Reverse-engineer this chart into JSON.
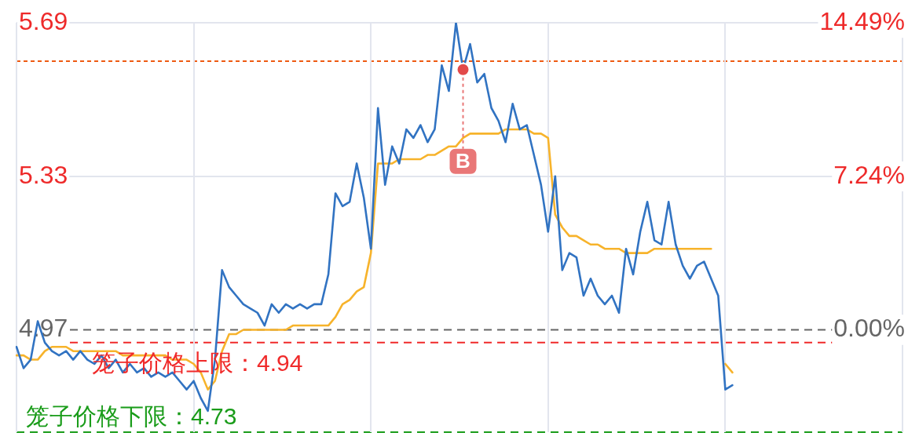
{
  "chart_data": {
    "type": "line",
    "categories": [
      null,
      null,
      null,
      null,
      null,
      null,
      null,
      null,
      null,
      null,
      null,
      null,
      null,
      null,
      null,
      null,
      null,
      null,
      null,
      null,
      null,
      null,
      null,
      null,
      null,
      null,
      null,
      null,
      null,
      null,
      null,
      null,
      null,
      null,
      null,
      null,
      null,
      null,
      null,
      null,
      null,
      null,
      null,
      null,
      null,
      null,
      null,
      null,
      null,
      null,
      null,
      null,
      null,
      null,
      null,
      null,
      null,
      null,
      null,
      null,
      null,
      null,
      null,
      null,
      null,
      null,
      null,
      null,
      null,
      null,
      null,
      null,
      null,
      null,
      null,
      null,
      null,
      null,
      null,
      null,
      null,
      null,
      null,
      null,
      null,
      null,
      null,
      null,
      null,
      null,
      null,
      null,
      null,
      null,
      null,
      null,
      null,
      null,
      null,
      null,
      null,
      null,
      null,
      null,
      null,
      null,
      null,
      null,
      null,
      null,
      null,
      null,
      null,
      null,
      null,
      null,
      null,
      null,
      null,
      null,
      null,
      null,
      null,
      null,
      null,
      null
    ],
    "series": [
      {
        "color": "#3173c2",
        "values": [
          4.93,
          4.88,
          4.9,
          4.99,
          4.94,
          4.92,
          4.91,
          4.92,
          4.9,
          4.92,
          4.9,
          4.89,
          4.91,
          4.88,
          4.9,
          4.87,
          4.89,
          4.87,
          4.88,
          4.86,
          4.87,
          4.86,
          4.87,
          4.85,
          4.83,
          4.85,
          4.81,
          4.78,
          4.9,
          5.11,
          5.07,
          5.05,
          5.03,
          5.02,
          5.01,
          4.98,
          5.03,
          5.01,
          5.03,
          5.02,
          5.03,
          5.02,
          5.03,
          5.03,
          5.1,
          5.29,
          5.26,
          5.27,
          5.36,
          5.28,
          5.16,
          5.49,
          5.31,
          5.4,
          5.36,
          5.44,
          5.42,
          5.45,
          5.41,
          5.44,
          5.59,
          5.53,
          5.69,
          5.58,
          5.64,
          5.55,
          5.57,
          5.49,
          5.46,
          5.41,
          5.5,
          5.44,
          5.45,
          5.38,
          5.31,
          5.2,
          5.33,
          5.11,
          5.15,
          5.14,
          5.05,
          5.09,
          5.05,
          5.03,
          5.05,
          5.01,
          5.16,
          5.1,
          5.2,
          5.27,
          5.18,
          5.17,
          5.27,
          5.17,
          5.12,
          5.09,
          5.12,
          5.13,
          5.09,
          5.05,
          4.83,
          4.84,
          null,
          null,
          null,
          null,
          null,
          null,
          null,
          null,
          null,
          null,
          null,
          null,
          null,
          null,
          null,
          null,
          null,
          null,
          null,
          null,
          null,
          null,
          null,
          null
        ]
      },
      {
        "color": "#f7b32b",
        "values": [
          4.91,
          4.91,
          4.9,
          4.9,
          4.92,
          4.93,
          4.93,
          4.93,
          4.92,
          4.92,
          4.92,
          4.92,
          4.92,
          4.92,
          4.92,
          4.91,
          4.91,
          4.91,
          4.91,
          4.91,
          4.91,
          4.91,
          4.9,
          4.9,
          4.9,
          4.89,
          4.87,
          4.83,
          4.85,
          4.92,
          4.96,
          4.96,
          4.97,
          4.97,
          4.97,
          4.97,
          4.97,
          4.97,
          4.97,
          4.98,
          4.98,
          4.98,
          4.98,
          4.98,
          4.98,
          5.0,
          5.03,
          5.04,
          5.06,
          5.07,
          5.15,
          5.36,
          5.36,
          5.36,
          5.37,
          5.37,
          5.37,
          5.37,
          5.38,
          5.38,
          5.39,
          5.4,
          5.4,
          5.42,
          5.43,
          5.43,
          5.43,
          5.43,
          5.43,
          5.44,
          5.44,
          5.44,
          5.44,
          5.43,
          5.43,
          5.42,
          5.24,
          5.21,
          5.19,
          5.19,
          5.18,
          5.17,
          5.17,
          5.16,
          5.16,
          5.16,
          5.15,
          5.15,
          5.15,
          5.15,
          5.16,
          5.16,
          5.16,
          5.16,
          5.16,
          5.16,
          5.16,
          5.16,
          5.16,
          null,
          4.89,
          4.87,
          null,
          null,
          null,
          null,
          null,
          null,
          null,
          null,
          null,
          null,
          null,
          null,
          null,
          null,
          null,
          null,
          null,
          null,
          null,
          null,
          null,
          null,
          null,
          null
        ]
      },
      {
        "type": "scatter",
        "color": "#e24a4a",
        "marker": "circle",
        "values": [
          null,
          null,
          null,
          null,
          null,
          null,
          null,
          null,
          null,
          null,
          null,
          null,
          null,
          null,
          null,
          null,
          null,
          null,
          null,
          null,
          null,
          null,
          null,
          null,
          null,
          null,
          null,
          null,
          null,
          null,
          null,
          null,
          null,
          null,
          null,
          null,
          null,
          null,
          null,
          null,
          null,
          null,
          null,
          null,
          null,
          null,
          null,
          null,
          null,
          null,
          null,
          null,
          null,
          null,
          null,
          null,
          null,
          null,
          null,
          null,
          null,
          null,
          null,
          5.58,
          null,
          null,
          null,
          null,
          null,
          null,
          null,
          null,
          null,
          null,
          null,
          null,
          null,
          null,
          null,
          null,
          null,
          null,
          null,
          null,
          null,
          null,
          null,
          null,
          null,
          null,
          null,
          null,
          null,
          null,
          null,
          null,
          null,
          null,
          null,
          null,
          null,
          null,
          null,
          null,
          null,
          null,
          null,
          null,
          null,
          null,
          null,
          null,
          null,
          null,
          null,
          null,
          null,
          null,
          null,
          null,
          null,
          null,
          null,
          null,
          null,
          null
        ],
        "value_labels": [
          null,
          null,
          null,
          null,
          null,
          null,
          null,
          null,
          null,
          null,
          null,
          null,
          null,
          null,
          null,
          null,
          null,
          null,
          null,
          null,
          null,
          null,
          null,
          null,
          null,
          null,
          null,
          null,
          null,
          null,
          null,
          null,
          null,
          null,
          null,
          null,
          null,
          null,
          null,
          null,
          null,
          null,
          null,
          null,
          null,
          null,
          null,
          null,
          null,
          null,
          null,
          null,
          null,
          null,
          null,
          null,
          null,
          null,
          null,
          null,
          null,
          null,
          null,
          "B",
          null,
          null,
          null,
          null,
          null,
          null,
          null,
          null,
          null,
          null,
          null,
          null,
          null,
          null,
          null,
          null,
          null,
          null,
          null,
          null,
          null,
          null,
          null,
          null,
          null,
          null,
          null,
          null,
          null,
          null,
          null,
          null,
          null,
          null,
          null,
          null,
          null,
          null,
          null,
          null,
          null,
          null,
          null,
          null,
          null,
          null,
          null,
          null,
          null,
          null,
          null,
          null,
          null,
          null,
          null,
          null,
          null,
          null,
          null,
          null,
          null,
          null
        ]
      }
    ],
    "ylim": [
      4.73,
      5.69
    ],
    "yticks": [
      4.97,
      5.33,
      5.69
    ],
    "y2lim": [
      -4.83,
      14.49
    ],
    "y2ticks": [
      {
        "value": 0,
        "label": "0.00%"
      },
      {
        "value": 7.24,
        "label": "7.24%"
      },
      {
        "value": 14.49,
        "label": "14.49%"
      }
    ],
    "grid": true,
    "ref_lines": [
      {
        "axis": "y",
        "value": 5.6,
        "color": "#ee5a12",
        "line_style": "dotted"
      },
      {
        "axis": "y",
        "value": 4.97,
        "color": "#666666",
        "line_style": "dashed"
      },
      {
        "axis": "y",
        "value": 4.94,
        "color": "#f02a2a",
        "line_style": "dashed",
        "label": "笼子价格上限：4.94"
      },
      {
        "axis": "y",
        "value": 4.73,
        "color": "#1a9c1a",
        "line_style": "dashed",
        "label": "笼子价格下限：4.73"
      }
    ]
  }
}
